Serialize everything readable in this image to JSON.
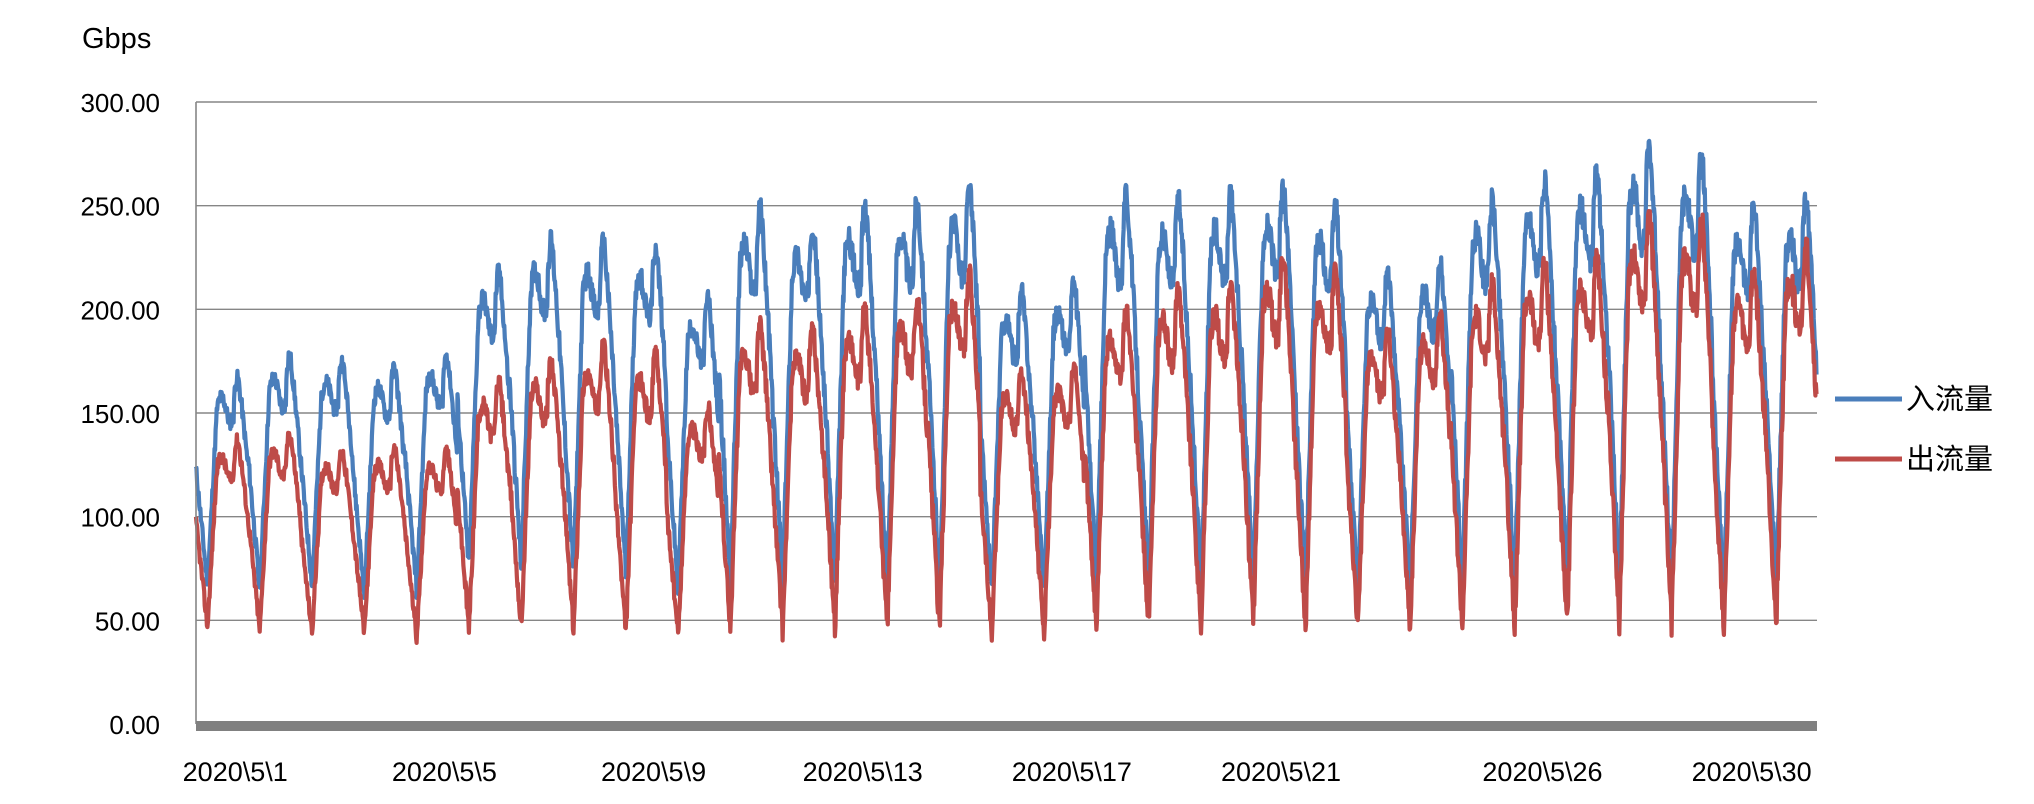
{
  "chart_data": {
    "type": "line",
    "ylabel": "Gbps",
    "ylim": [
      0,
      300
    ],
    "y_ticks": [
      "0.00",
      "50.00",
      "100.00",
      "150.00",
      "200.00",
      "250.00",
      "300.00"
    ],
    "x_tick_labels": [
      "2020\\5\\1",
      "2020\\5\\5",
      "2020\\5\\9",
      "2020\\5\\13",
      "2020\\5\\17",
      "2020\\5\\21",
      "2020\\5\\26",
      "2020\\5\\30"
    ],
    "grid": true,
    "legend_position": "right",
    "series": [
      {
        "name": "入流量",
        "color": "#4a7ebb",
        "x": [
          "2020-05-01",
          "2020-05-02",
          "2020-05-03",
          "2020-05-04",
          "2020-05-05",
          "2020-05-06",
          "2020-05-07",
          "2020-05-08",
          "2020-05-09",
          "2020-05-10",
          "2020-05-11",
          "2020-05-12",
          "2020-05-13",
          "2020-05-14",
          "2020-05-15",
          "2020-05-16",
          "2020-05-17",
          "2020-05-18",
          "2020-05-19",
          "2020-05-20",
          "2020-05-21",
          "2020-05-22",
          "2020-05-23",
          "2020-05-24",
          "2020-05-25",
          "2020-05-26",
          "2020-05-27",
          "2020-05-28",
          "2020-05-29",
          "2020-05-30",
          "2020-05-31"
        ],
        "daily_min": [
          65,
          62,
          65,
          60,
          62,
          72,
          72,
          70,
          70,
          62,
          65,
          65,
          63,
          60,
          62,
          60,
          62,
          63,
          63,
          62,
          63,
          62,
          63,
          62,
          63,
          62,
          62,
          62,
          60,
          60,
          62
        ],
        "daily_max": [
          167,
          177,
          175,
          172,
          178,
          218,
          233,
          232,
          230,
          205,
          248,
          242,
          250,
          253,
          258,
          208,
          212,
          255,
          253,
          255,
          258,
          250,
          218,
          222,
          253,
          262,
          267,
          278,
          273,
          250,
          252
        ]
      },
      {
        "name": "出流量",
        "color": "#be4b48",
        "x": [
          "2020-05-01",
          "2020-05-02",
          "2020-05-03",
          "2020-05-04",
          "2020-05-05",
          "2020-05-06",
          "2020-05-07",
          "2020-05-08",
          "2020-05-09",
          "2020-05-10",
          "2020-05-11",
          "2020-05-12",
          "2020-05-13",
          "2020-05-14",
          "2020-05-15",
          "2020-05-16",
          "2020-05-17",
          "2020-05-18",
          "2020-05-19",
          "2020-05-20",
          "2020-05-21",
          "2020-05-22",
          "2020-05-23",
          "2020-05-24",
          "2020-05-25",
          "2020-05-26",
          "2020-05-27",
          "2020-05-28",
          "2020-05-29",
          "2020-05-30",
          "2020-05-31"
        ],
        "daily_min": [
          45,
          43,
          42,
          42,
          40,
          43,
          43,
          42,
          40,
          40,
          43,
          42,
          43,
          43,
          42,
          40,
          40,
          43,
          43,
          43,
          43,
          43,
          43,
          43,
          43,
          43,
          43,
          43,
          43,
          43,
          43
        ],
        "daily_max": [
          137,
          140,
          132,
          133,
          132,
          165,
          175,
          182,
          178,
          153,
          192,
          190,
          200,
          205,
          217,
          170,
          172,
          200,
          210,
          212,
          225,
          218,
          190,
          198,
          212,
          222,
          225,
          245,
          243,
          218,
          230
        ]
      }
    ]
  }
}
